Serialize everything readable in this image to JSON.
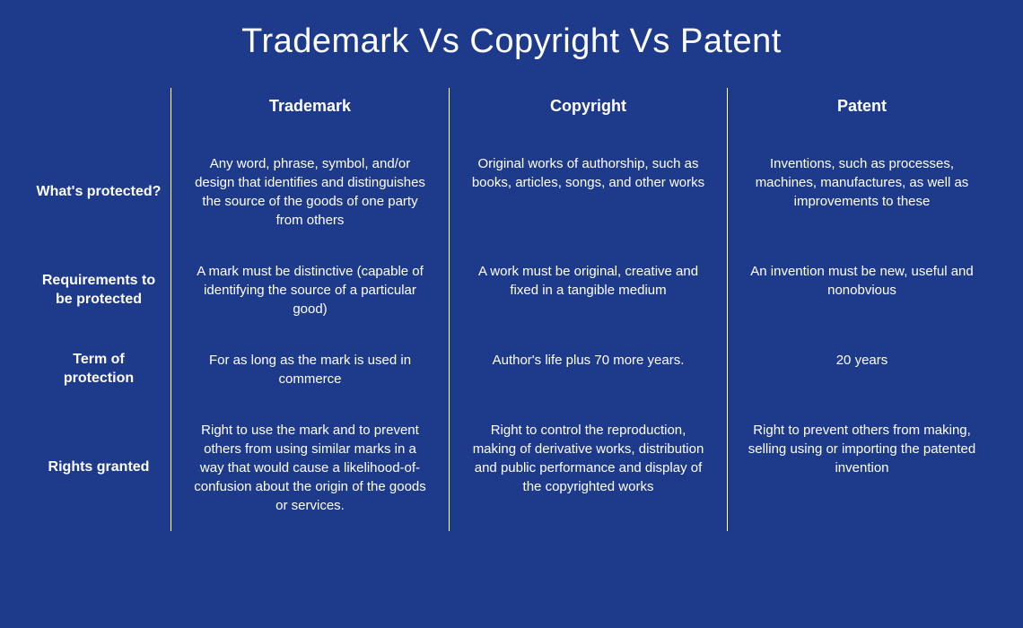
{
  "title": "Trademark Vs Copyright Vs Patent",
  "background_color": "#1e3a8a",
  "text_color": "#ffffff",
  "divider_color": "#ffffff",
  "columns": [
    "Trademark",
    "Copyright",
    "Patent"
  ],
  "rows": [
    {
      "label": "What's protected?",
      "cells": [
        "Any word, phrase, symbol, and/or design that identifies and distinguishes the source of the goods of one party from others",
        "Original works of authorship, such as books, articles, songs, and other works",
        "Inventions, such as processes, machines, manufactures, as well as improvements to these"
      ]
    },
    {
      "label": "Requirements to be protected",
      "cells": [
        "A mark must be distinctive (capable of identifying the source of a particular good)",
        "A work must be original, creative and fixed in a tangible medium",
        "An invention must be new, useful and nonobvious"
      ]
    },
    {
      "label": "Term of protection",
      "cells": [
        "For as long as the mark is used in commerce",
        "Author's life plus 70 more years.",
        "20 years"
      ]
    },
    {
      "label": "Rights granted",
      "cells": [
        "Right to use the mark and to prevent others from using similar marks in a way that would cause a likelihood-of-confusion about the origin of the goods or services.",
        "Right to control the reproduction, making of derivative works, distribution and public performance and display of the copyrighted works",
        "Right to prevent others from making, selling using or importing the patented invention"
      ]
    }
  ]
}
